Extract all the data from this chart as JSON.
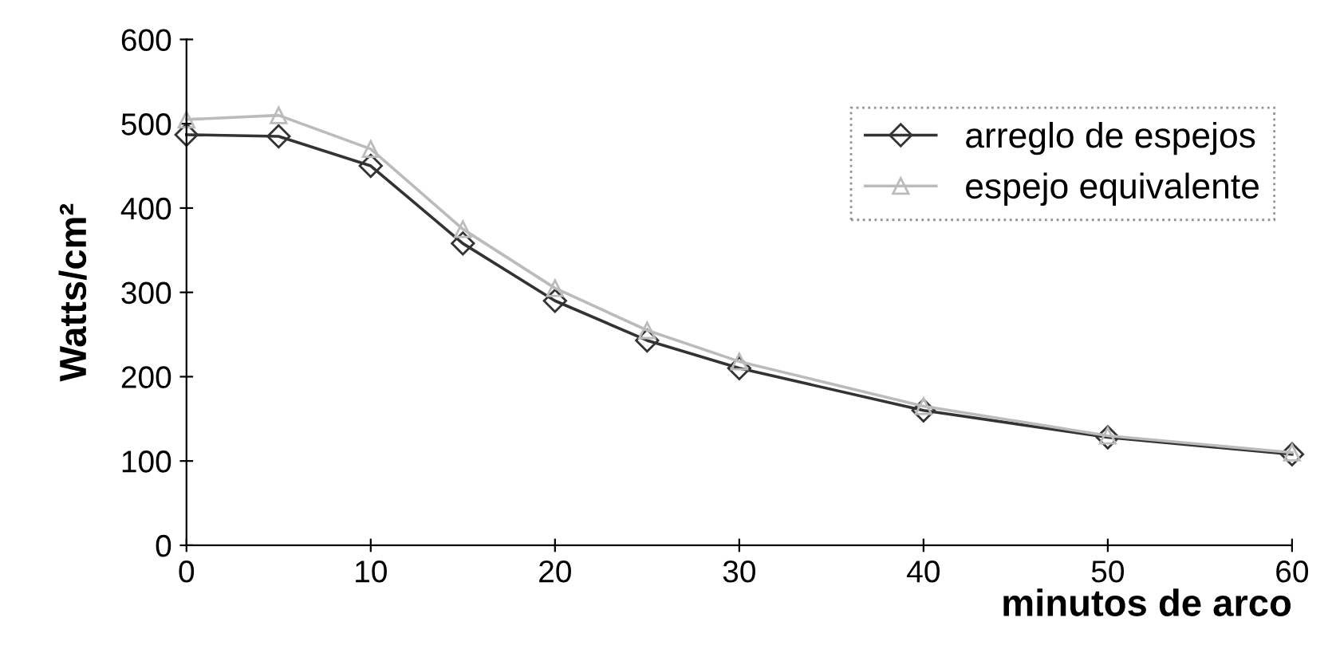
{
  "chart_data": {
    "type": "line",
    "xlabel": "minutos de arco",
    "ylabel": "Watts/cm²",
    "x": [
      0,
      5,
      10,
      15,
      20,
      25,
      30,
      40,
      50,
      60
    ],
    "series": [
      {
        "name": "arreglo de espejos",
        "color": "#333333",
        "marker": "diamond",
        "values": [
          487,
          485,
          450,
          358,
          290,
          243,
          210,
          160,
          128,
          108
        ]
      },
      {
        "name": "espejo equivalente",
        "color": "#bbbbbb",
        "marker": "triangle",
        "values": [
          505,
          510,
          470,
          375,
          305,
          255,
          218,
          165,
          130,
          110
        ]
      }
    ],
    "xlim": [
      0,
      60
    ],
    "ylim": [
      0,
      600
    ],
    "xticks": [
      0,
      10,
      20,
      30,
      40,
      50,
      60
    ],
    "yticks": [
      0,
      100,
      200,
      300,
      400,
      500,
      600
    ],
    "grid": false,
    "legend": "top right",
    "line_style": "solid"
  }
}
